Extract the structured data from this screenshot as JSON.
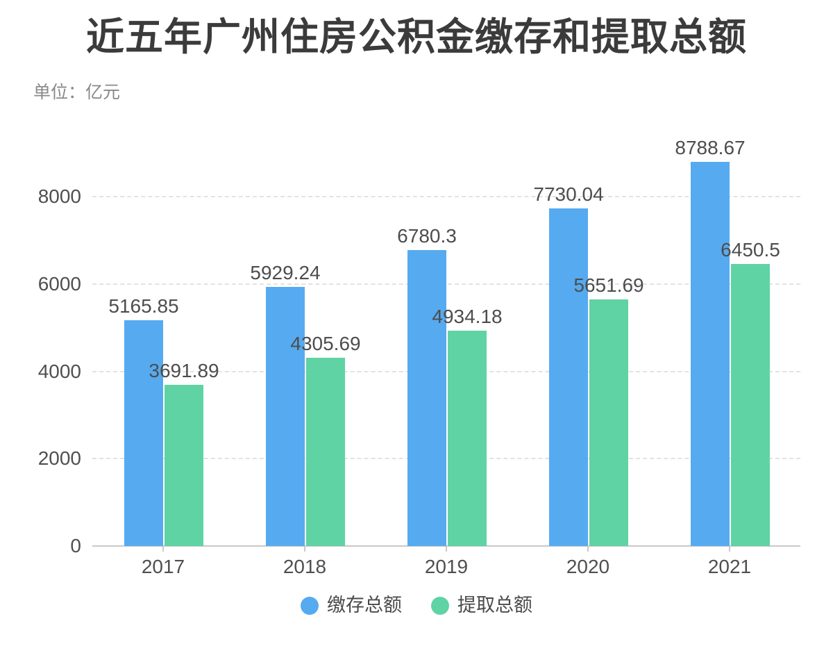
{
  "title": "近五年广州住房公积金缴存和提取总额",
  "unit_label": "单位：亿元",
  "chart_data": {
    "type": "bar",
    "categories": [
      "2017",
      "2018",
      "2019",
      "2020",
      "2021"
    ],
    "series": [
      {
        "name": "缴存总额",
        "color": "#56AAF0",
        "values": [
          5165.85,
          5929.24,
          6780.3,
          7730.04,
          8788.67
        ]
      },
      {
        "name": "提取总额",
        "color": "#5FD3A4",
        "values": [
          3691.89,
          4305.69,
          4934.18,
          5651.69,
          6450.5
        ]
      }
    ],
    "ylabel": "亿元",
    "yticks": [
      0,
      2000,
      4000,
      6000,
      8000
    ],
    "ylim": [
      0,
      9000
    ],
    "grid": "horizontal-dashed",
    "value_labels": "above-bars",
    "legend_position": "bottom",
    "colors": {
      "grid_line": "#e2e2e2",
      "axis_line": "#c9c9c9",
      "label_text": "#4d4d4d",
      "title_text": "#3b3b3b",
      "subtitle_text": "#898989"
    }
  }
}
